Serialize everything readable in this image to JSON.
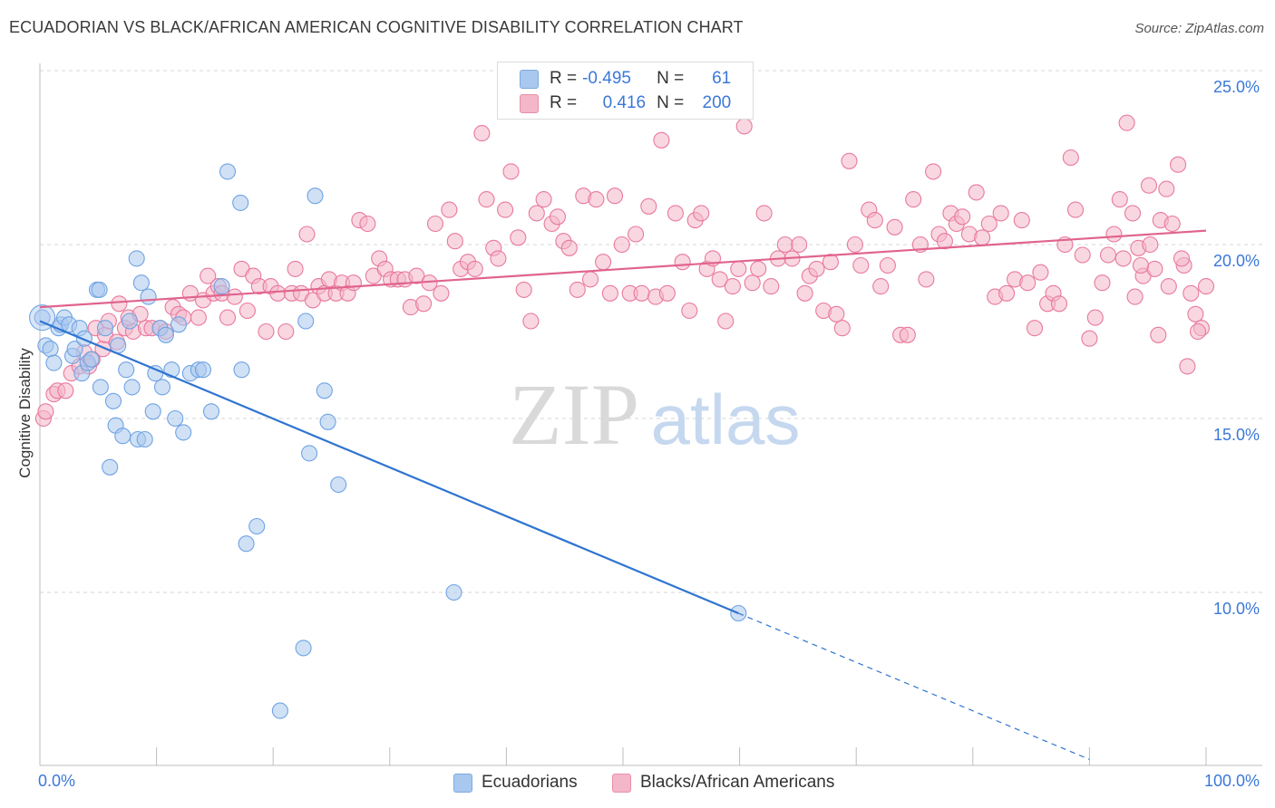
{
  "title": "ECUADORIAN VS BLACK/AFRICAN AMERICAN COGNITIVE DISABILITY CORRELATION CHART",
  "source": "Source: ZipAtlas.com",
  "watermark": {
    "zip": "ZIP",
    "atlas": "atlas"
  },
  "legend": {
    "rows": [
      {
        "r_label": "R =",
        "r_value": "-0.495",
        "n_label": "N =",
        "n_value": "61",
        "color": "#a9c8ef"
      },
      {
        "r_label": "R =",
        "r_value": "0.416",
        "n_label": "N =",
        "n_value": "200",
        "color": "#f4b6c9"
      }
    ]
  },
  "bottom_legend": [
    {
      "label": "Ecuadorians",
      "color": "#a9c8ef"
    },
    {
      "label": "Blacks/African Americans",
      "color": "#f4b6c9"
    }
  ],
  "chart_data": {
    "type": "scatter",
    "title": "ECUADORIAN VS BLACK/AFRICAN AMERICAN COGNITIVE DISABILITY CORRELATION CHART",
    "xlabel": "",
    "ylabel": "Cognitive Disability",
    "xlim": [
      0,
      100
    ],
    "ylim": [
      5,
      26
    ],
    "x_tick_labels": [
      "0.0%",
      "100.0%"
    ],
    "y_ticks": [
      10,
      15,
      20,
      25
    ],
    "y_tick_labels": [
      "10.0%",
      "15.0%",
      "20.0%",
      "25.0%"
    ],
    "grid": "horizontal dashed",
    "legend_position": "top-center",
    "series": [
      {
        "name": "Ecuadorians",
        "color": "#6fa3e3",
        "fill": "#a9c8ef",
        "trend": {
          "x": [
            0,
            59.9
          ],
          "y": [
            17.8,
            9.4
          ],
          "dashed_extension": {
            "x": [
              59.9,
              90
            ],
            "y": [
              9.4,
              5.2
            ]
          }
        },
        "points": [
          [
            0.2,
            17.9
          ],
          [
            0.5,
            17.1
          ],
          [
            0.9,
            17.0
          ],
          [
            1.2,
            16.6
          ],
          [
            1.6,
            17.6
          ],
          [
            1.8,
            17.7
          ],
          [
            2.1,
            17.9
          ],
          [
            2.5,
            17.7
          ],
          [
            2.8,
            16.8
          ],
          [
            3.0,
            17.0
          ],
          [
            3.4,
            17.6
          ],
          [
            3.6,
            16.3
          ],
          [
            3.8,
            17.3
          ],
          [
            4.1,
            16.6
          ],
          [
            4.4,
            16.7
          ],
          [
            4.9,
            18.7
          ],
          [
            5.1,
            18.7
          ],
          [
            5.2,
            15.9
          ],
          [
            5.6,
            17.6
          ],
          [
            6.0,
            13.6
          ],
          [
            6.3,
            15.5
          ],
          [
            6.5,
            14.8
          ],
          [
            6.7,
            17.1
          ],
          [
            7.1,
            14.5
          ],
          [
            7.4,
            16.4
          ],
          [
            7.7,
            17.8
          ],
          [
            7.9,
            15.9
          ],
          [
            8.3,
            19.6
          ],
          [
            8.4,
            14.4
          ],
          [
            8.7,
            18.9
          ],
          [
            9.0,
            14.4
          ],
          [
            9.3,
            18.5
          ],
          [
            9.7,
            15.2
          ],
          [
            9.9,
            16.3
          ],
          [
            10.3,
            17.6
          ],
          [
            10.5,
            15.9
          ],
          [
            10.8,
            17.4
          ],
          [
            11.3,
            16.4
          ],
          [
            11.6,
            15.0
          ],
          [
            11.9,
            17.7
          ],
          [
            12.3,
            14.6
          ],
          [
            12.9,
            16.3
          ],
          [
            13.6,
            16.4
          ],
          [
            14.0,
            16.4
          ],
          [
            14.7,
            15.2
          ],
          [
            15.6,
            18.8
          ],
          [
            16.1,
            22.1
          ],
          [
            17.2,
            21.2
          ],
          [
            17.3,
            16.4
          ],
          [
            17.7,
            11.4
          ],
          [
            18.6,
            11.9
          ],
          [
            20.6,
            6.6
          ],
          [
            22.6,
            8.4
          ],
          [
            22.8,
            17.8
          ],
          [
            23.1,
            14.0
          ],
          [
            23.6,
            21.4
          ],
          [
            24.4,
            15.8
          ],
          [
            24.7,
            14.9
          ],
          [
            25.6,
            13.1
          ],
          [
            35.5,
            10.0
          ],
          [
            59.9,
            9.4
          ]
        ]
      },
      {
        "name": "Blacks/African Americans",
        "color": "#e8799e",
        "fill": "#f4b6c9",
        "trend": {
          "x": [
            0,
            100
          ],
          "y": [
            18.2,
            20.4
          ]
        },
        "points": [
          [
            0.3,
            15.0
          ],
          [
            0.5,
            15.2
          ],
          [
            1.2,
            15.7
          ],
          [
            1.5,
            15.8
          ],
          [
            2.2,
            15.8
          ],
          [
            2.7,
            16.3
          ],
          [
            3.4,
            16.5
          ],
          [
            3.8,
            16.9
          ],
          [
            4.2,
            16.5
          ],
          [
            4.5,
            16.7
          ],
          [
            4.8,
            17.6
          ],
          [
            5.4,
            17.0
          ],
          [
            5.6,
            17.4
          ],
          [
            5.9,
            17.8
          ],
          [
            6.6,
            17.2
          ],
          [
            6.8,
            18.3
          ],
          [
            7.3,
            17.6
          ],
          [
            7.6,
            17.9
          ],
          [
            8.0,
            17.5
          ],
          [
            8.6,
            18.0
          ],
          [
            9.1,
            17.6
          ],
          [
            9.6,
            17.6
          ],
          [
            10.3,
            17.6
          ],
          [
            10.8,
            17.5
          ],
          [
            11.4,
            18.2
          ],
          [
            11.9,
            18.0
          ],
          [
            12.3,
            17.9
          ],
          [
            12.9,
            18.6
          ],
          [
            13.6,
            17.9
          ],
          [
            14.0,
            18.4
          ],
          [
            14.4,
            19.1
          ],
          [
            14.9,
            18.6
          ],
          [
            15.3,
            18.8
          ],
          [
            15.6,
            18.6
          ],
          [
            16.1,
            17.9
          ],
          [
            16.7,
            18.5
          ],
          [
            17.3,
            19.3
          ],
          [
            17.8,
            18.1
          ],
          [
            18.3,
            19.1
          ],
          [
            18.8,
            18.8
          ],
          [
            19.4,
            17.5
          ],
          [
            19.8,
            18.8
          ],
          [
            20.4,
            18.6
          ],
          [
            21.1,
            17.5
          ],
          [
            21.6,
            18.6
          ],
          [
            21.9,
            19.3
          ],
          [
            22.4,
            18.6
          ],
          [
            22.9,
            20.3
          ],
          [
            23.4,
            18.4
          ],
          [
            23.9,
            18.8
          ],
          [
            24.4,
            18.6
          ],
          [
            24.8,
            19.0
          ],
          [
            25.4,
            18.6
          ],
          [
            25.9,
            18.9
          ],
          [
            26.4,
            18.6
          ],
          [
            26.9,
            18.9
          ],
          [
            27.4,
            20.7
          ],
          [
            28.1,
            20.6
          ],
          [
            28.6,
            19.1
          ],
          [
            29.1,
            19.6
          ],
          [
            29.6,
            19.3
          ],
          [
            30.1,
            19.0
          ],
          [
            30.7,
            19.0
          ],
          [
            31.3,
            19.0
          ],
          [
            31.8,
            18.2
          ],
          [
            32.3,
            19.1
          ],
          [
            32.9,
            18.3
          ],
          [
            33.4,
            18.9
          ],
          [
            33.9,
            20.6
          ],
          [
            34.4,
            18.6
          ],
          [
            35.1,
            21.0
          ],
          [
            35.6,
            20.1
          ],
          [
            36.1,
            19.3
          ],
          [
            36.7,
            19.5
          ],
          [
            37.3,
            19.3
          ],
          [
            37.9,
            23.2
          ],
          [
            38.3,
            21.3
          ],
          [
            38.9,
            19.9
          ],
          [
            39.3,
            19.6
          ],
          [
            39.9,
            21.0
          ],
          [
            40.4,
            22.1
          ],
          [
            41.0,
            20.2
          ],
          [
            41.5,
            18.7
          ],
          [
            42.1,
            17.8
          ],
          [
            42.6,
            20.9
          ],
          [
            43.2,
            21.3
          ],
          [
            43.9,
            20.6
          ],
          [
            44.4,
            20.8
          ],
          [
            44.9,
            20.1
          ],
          [
            45.4,
            19.9
          ],
          [
            46.1,
            18.7
          ],
          [
            46.6,
            21.4
          ],
          [
            47.2,
            19.0
          ],
          [
            47.7,
            21.3
          ],
          [
            48.3,
            19.5
          ],
          [
            48.9,
            18.6
          ],
          [
            49.3,
            21.4
          ],
          [
            49.9,
            20.0
          ],
          [
            50.6,
            18.6
          ],
          [
            51.1,
            20.3
          ],
          [
            51.6,
            18.6
          ],
          [
            52.2,
            21.1
          ],
          [
            52.8,
            18.5
          ],
          [
            53.3,
            23.0
          ],
          [
            53.8,
            18.6
          ],
          [
            54.5,
            20.9
          ],
          [
            55.1,
            19.5
          ],
          [
            55.7,
            18.1
          ],
          [
            56.2,
            20.7
          ],
          [
            56.7,
            20.9
          ],
          [
            57.2,
            19.3
          ],
          [
            57.7,
            19.6
          ],
          [
            58.3,
            19.0
          ],
          [
            58.8,
            17.8
          ],
          [
            59.4,
            18.8
          ],
          [
            59.9,
            19.3
          ],
          [
            60.4,
            23.4
          ],
          [
            61.1,
            18.9
          ],
          [
            61.6,
            19.3
          ],
          [
            62.1,
            20.9
          ],
          [
            62.7,
            18.8
          ],
          [
            63.3,
            19.6
          ],
          [
            63.9,
            20.0
          ],
          [
            64.5,
            19.6
          ],
          [
            65.1,
            20.0
          ],
          [
            65.6,
            18.6
          ],
          [
            66.0,
            19.1
          ],
          [
            66.6,
            19.3
          ],
          [
            67.2,
            18.1
          ],
          [
            67.8,
            19.5
          ],
          [
            68.3,
            18.0
          ],
          [
            68.8,
            17.6
          ],
          [
            69.4,
            22.4
          ],
          [
            69.9,
            20.0
          ],
          [
            70.4,
            19.4
          ],
          [
            71.1,
            21.0
          ],
          [
            71.6,
            20.7
          ],
          [
            72.1,
            18.8
          ],
          [
            72.7,
            19.4
          ],
          [
            73.3,
            20.5
          ],
          [
            73.8,
            17.4
          ],
          [
            74.4,
            17.4
          ],
          [
            74.9,
            21.3
          ],
          [
            75.5,
            20.0
          ],
          [
            76.0,
            19.0
          ],
          [
            76.6,
            22.1
          ],
          [
            77.1,
            20.3
          ],
          [
            77.6,
            20.1
          ],
          [
            78.1,
            20.9
          ],
          [
            78.6,
            20.6
          ],
          [
            79.1,
            20.8
          ],
          [
            79.7,
            20.3
          ],
          [
            80.3,
            21.5
          ],
          [
            80.8,
            20.2
          ],
          [
            81.4,
            20.6
          ],
          [
            81.9,
            18.5
          ],
          [
            82.4,
            20.9
          ],
          [
            82.9,
            18.6
          ],
          [
            83.6,
            19.0
          ],
          [
            84.2,
            20.7
          ],
          [
            84.7,
            18.9
          ],
          [
            85.3,
            17.6
          ],
          [
            85.8,
            19.2
          ],
          [
            86.4,
            18.3
          ],
          [
            86.9,
            18.6
          ],
          [
            87.4,
            18.3
          ],
          [
            87.9,
            20.0
          ],
          [
            88.4,
            22.5
          ],
          [
            88.8,
            21.0
          ],
          [
            89.4,
            19.7
          ],
          [
            90.0,
            17.3
          ],
          [
            90.5,
            17.9
          ],
          [
            91.1,
            18.9
          ],
          [
            91.6,
            19.7
          ],
          [
            92.1,
            20.3
          ],
          [
            92.6,
            21.3
          ],
          [
            93.2,
            23.5
          ],
          [
            93.7,
            20.9
          ],
          [
            94.2,
            19.9
          ],
          [
            94.6,
            19.1
          ],
          [
            95.1,
            21.7
          ],
          [
            95.6,
            19.3
          ],
          [
            96.1,
            20.7
          ],
          [
            96.6,
            21.6
          ],
          [
            97.1,
            20.6
          ],
          [
            97.6,
            22.3
          ],
          [
            98.1,
            19.4
          ],
          [
            98.7,
            18.6
          ],
          [
            99.1,
            18.0
          ],
          [
            99.6,
            17.6
          ],
          [
            100.0,
            18.8
          ],
          [
            98.4,
            16.5
          ],
          [
            99.3,
            17.5
          ],
          [
            97.9,
            19.6
          ],
          [
            96.8,
            18.8
          ],
          [
            95.9,
            17.4
          ],
          [
            95.2,
            20.0
          ],
          [
            94.4,
            19.4
          ],
          [
            93.9,
            18.5
          ],
          [
            92.9,
            19.6
          ]
        ]
      }
    ]
  }
}
